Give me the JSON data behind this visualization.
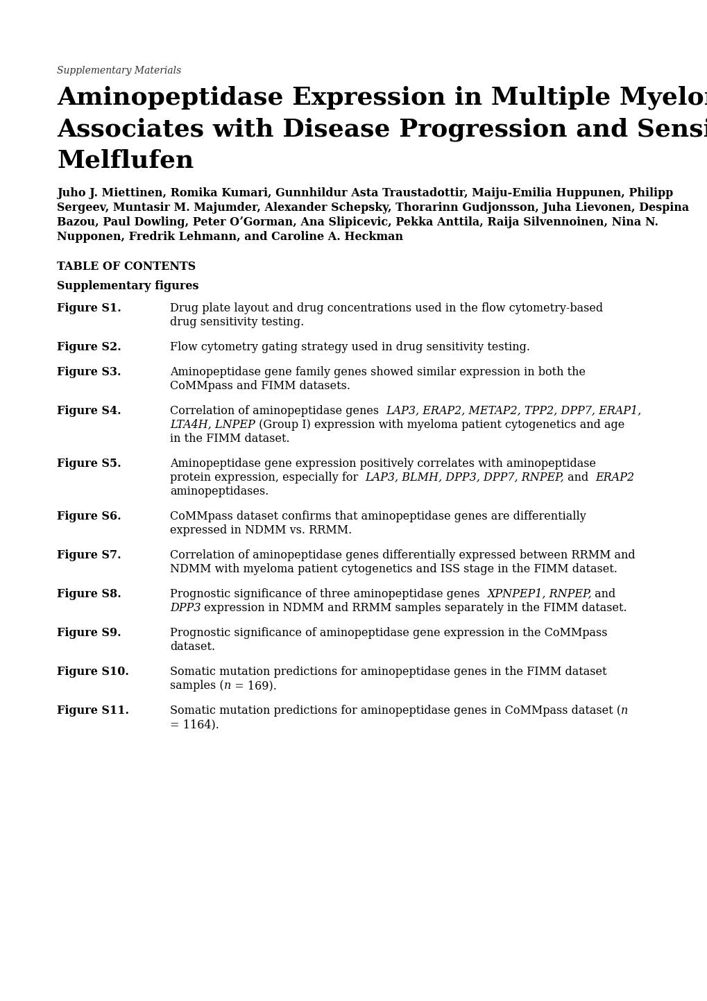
{
  "background_color": "#ffffff",
  "supplementary_label": "Supplementary Materials",
  "title_line1": "Aminopeptidase Expression in Multiple Myeloma",
  "title_line2": "Associates with Disease Progression and Sensitivity to",
  "title_line3": "Melflufen",
  "author_lines": [
    "Juho J. Miettinen, Romika Kumari, Gunnhildur Asta Traustadottir, Maiju-Emilia Huppunen, Philipp",
    "Sergeev, Muntasir M. Majumder, Alexander Schepsky, Thorarinn Gudjonsson, Juha Lievonen, Despina",
    "Bazou, Paul Dowling, Peter OʼGorman, Ana Slipicevic, Pekka Anttila, Raija Silvennoinen, Nina N.",
    "Nupponen, Fredrik Lehmann, and Caroline A. Heckman"
  ],
  "toc_header": "TABLE OF CONTENTS",
  "supp_figs_header": "Supplementary figures",
  "figures": [
    {
      "label": "Figure S1.",
      "segments": [
        {
          "text": "Drug plate layout and drug concentrations used in the flow cytometry-based drug sensitivity testing.",
          "style": "normal"
        }
      ]
    },
    {
      "label": "Figure S2.",
      "segments": [
        {
          "text": "Flow cytometry gating strategy used in drug sensitivity testing.",
          "style": "normal"
        }
      ]
    },
    {
      "label": "Figure S3.",
      "segments": [
        {
          "text": "Aminopeptidase gene family genes showed similar expression in both the CoMMpass and FIMM datasets.",
          "style": "normal"
        }
      ]
    },
    {
      "label": "Figure S4.",
      "segments": [
        {
          "text": "Correlation of aminopeptidase genes ",
          "style": "normal"
        },
        {
          "text": "LAP3, ERAP2, METAP2, TPP2, DPP7, ERAP1, LTA4H, LNPEP",
          "style": "italic"
        },
        {
          "text": " (Group I) expression with myeloma patient cytogenetics and age in the FIMM dataset.",
          "style": "normal"
        }
      ]
    },
    {
      "label": "Figure S5.",
      "segments": [
        {
          "text": "Aminopeptidase gene expression positively correlates with aminopeptidase protein expression, especially for ",
          "style": "normal"
        },
        {
          "text": "LAP3, BLMH, DPP3, DPP7, RNPEP,",
          "style": "italic"
        },
        {
          "text": " and ",
          "style": "normal"
        },
        {
          "text": "ERAP2",
          "style": "italic"
        },
        {
          "text": " aminopeptidases.",
          "style": "normal"
        }
      ]
    },
    {
      "label": "Figure S6.",
      "segments": [
        {
          "text": "CoMMpass dataset confirms that aminopeptidase genes are differentially expressed in NDMM vs. RRMM.",
          "style": "normal"
        }
      ]
    },
    {
      "label": "Figure S7.",
      "segments": [
        {
          "text": "Correlation of aminopeptidase genes differentially expressed between RRMM and NDMM with myeloma patient cytogenetics and ISS stage in the FIMM dataset.",
          "style": "normal"
        }
      ]
    },
    {
      "label": "Figure S8.",
      "segments": [
        {
          "text": "Prognostic significance of three aminopeptidase genes ",
          "style": "normal"
        },
        {
          "text": "XPNPEP1, RNPEP,",
          "style": "italic"
        },
        {
          "text": " and ",
          "style": "normal"
        },
        {
          "text": "DPP3",
          "style": "italic"
        },
        {
          "text": " expression in NDMM and RRMM samples separately in the FIMM dataset.",
          "style": "normal"
        }
      ]
    },
    {
      "label": "Figure S9.",
      "segments": [
        {
          "text": "Prognostic significance of aminopeptidase gene expression in the CoMMpass dataset.",
          "style": "normal"
        }
      ]
    },
    {
      "label": "Figure S10.",
      "segments": [
        {
          "text": "Somatic mutation predictions for aminopeptidase genes in the FIMM dataset samples (",
          "style": "normal"
        },
        {
          "text": "n",
          "style": "italic"
        },
        {
          "text": " = 169).",
          "style": "normal"
        }
      ]
    },
    {
      "label": "Figure S11.",
      "segments": [
        {
          "text": "Somatic mutation predictions for aminopeptidase genes in CoMMpass dataset (",
          "style": "normal"
        },
        {
          "text": "n",
          "style": "italic"
        },
        {
          "text": " = 1164).",
          "style": "normal"
        }
      ]
    }
  ]
}
